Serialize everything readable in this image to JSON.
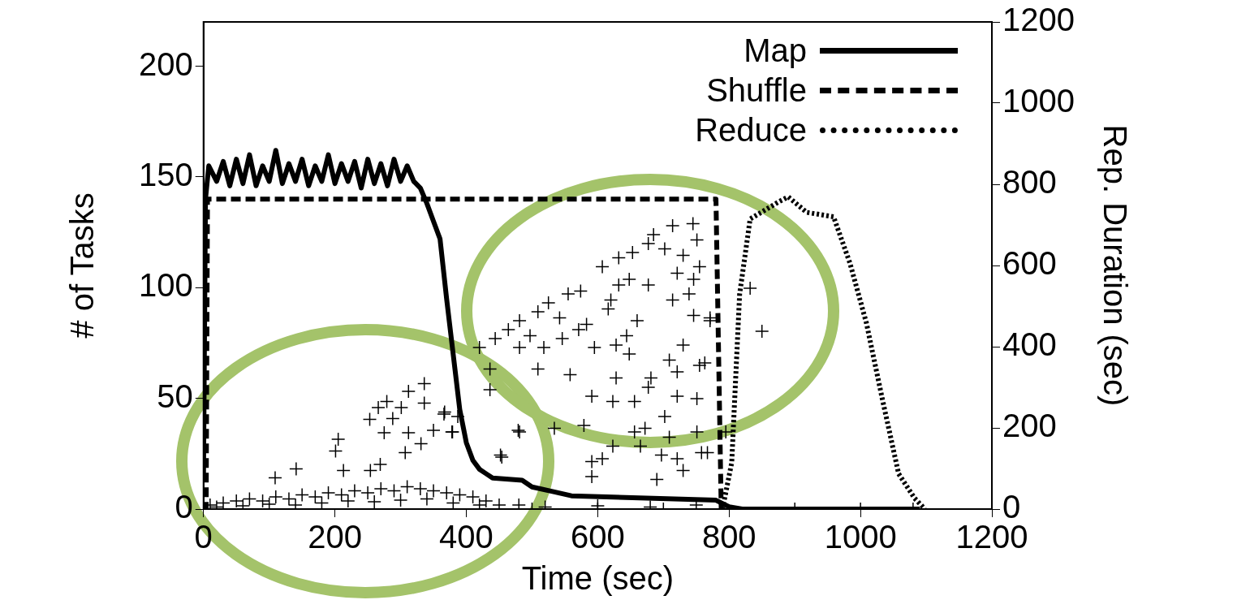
{
  "chart_data": {
    "type": "line",
    "xlabel": "Time (sec)",
    "ylabel": "# of Tasks",
    "y2label": "Rep. Duration (sec)",
    "xlim": [
      0,
      1200
    ],
    "xticks": [
      0,
      200,
      400,
      600,
      800,
      1000,
      1200
    ],
    "ylim": [
      0,
      220
    ],
    "yticks": [
      0,
      50,
      100,
      150,
      200
    ],
    "y2lim": [
      0,
      1200
    ],
    "y2ticks": [
      0,
      200,
      400,
      600,
      800,
      1000,
      1200
    ],
    "legend": "top right",
    "grid": false,
    "series": [
      {
        "type": "scatter",
        "axis": "y2",
        "color": "#000000",
        "marker": "cross",
        "x": [
          10,
          30,
          50,
          70,
          90,
          110,
          130,
          150,
          170,
          190,
          210,
          230,
          250,
          270,
          290,
          310,
          330,
          350,
          370,
          390,
          410,
          430,
          450,
          20,
          60,
          100,
          140,
          180,
          220,
          260,
          300,
          340,
          380,
          420,
          141,
          109,
          205,
          201,
          253,
          279,
          266,
          301,
          312,
          336,
          336,
          288,
          312,
          275,
          331,
          350,
          379,
          367,
          307,
          269,
          213,
          254,
          454,
          479,
          420,
          444,
          481,
          509,
          525,
          555,
          574,
          607,
          632,
          653,
          685,
          714,
          745,
          730,
          746,
          677,
          714,
          746,
          660,
          620,
          583,
          546,
          518,
          481,
          509,
          558,
          591,
          628,
          648,
          681,
          709,
          730,
          721,
          755,
          771,
          751,
          721,
          702,
          672,
          656,
          623,
          709,
          697,
          751,
          758,
          721,
          690,
          730,
          665,
          623,
          591,
          607,
          591,
          579,
          534,
          481,
          452,
          436,
          378,
          366,
          387,
          436,
          464,
          497,
          542,
          571,
          595,
          628,
          644,
          616,
          632,
          648,
          677,
          702,
          721,
          739,
          755,
          751,
          677,
          656,
          850,
          832,
          795,
          771,
          763,
          767,
          480,
          520,
          600,
          680,
          750,
          500,
          600,
          700,
          900,
          1000,
          1080
        ],
        "values": [
          10,
          15,
          20,
          25,
          20,
          30,
          25,
          35,
          30,
          40,
          35,
          45,
          40,
          50,
          45,
          55,
          50,
          45,
          40,
          35,
          30,
          20,
          10,
          5,
          8,
          12,
          10,
          15,
          20,
          18,
          22,
          25,
          15,
          10,
          99,
          77,
          172,
          143,
          221,
          265,
          250,
          250,
          290,
          309,
          261,
          223,
          188,
          188,
          161,
          194,
          190,
          239,
          139,
          110,
          95,
          95,
          128,
          194,
          398,
          420,
          464,
          486,
          508,
          530,
          537,
          597,
          619,
          632,
          676,
          698,
          703,
          625,
          566,
          552,
          515,
          477,
          464,
          515,
          455,
          420,
          398,
          398,
          345,
          331,
          278,
          323,
          382,
          323,
          367,
          404,
          338,
          354,
          471,
          272,
          278,
          228,
          199,
          190,
          265,
          177,
          133,
          190,
          139,
          124,
          73,
          95,
          155,
          155,
          117,
          124,
          80,
          206,
          199,
          190,
          133,
          294,
          190,
          234,
          228,
          345,
          442,
          427,
          471,
          442,
          398,
          404,
          427,
          493,
          552,
          566,
          654,
          641,
          581,
          530,
          597,
          663,
          300,
          265,
          438,
          544,
          190,
          464,
          360,
          139,
          10,
          5,
          8,
          5,
          10,
          0,
          0,
          0,
          0,
          0,
          0
        ]
      },
      {
        "name": "Map",
        "color": "#000000",
        "line_style": "solid",
        "marker": "none",
        "x": [
          0,
          3,
          8,
          20,
          30,
          40,
          50,
          60,
          70,
          80,
          90,
          100,
          110,
          120,
          130,
          140,
          150,
          160,
          170,
          180,
          190,
          200,
          210,
          220,
          230,
          240,
          250,
          260,
          270,
          280,
          290,
          300,
          310,
          320,
          330,
          340,
          350,
          360,
          370,
          380,
          390,
          400,
          410,
          420,
          430,
          440,
          485,
          500,
          530,
          560,
          780,
          800,
          820,
          1090
        ],
        "values": [
          15,
          140,
          155,
          148,
          157,
          146,
          158,
          147,
          160,
          146,
          155,
          148,
          162,
          147,
          156,
          148,
          158,
          146,
          155,
          148,
          160,
          147,
          156,
          148,
          157,
          145,
          158,
          147,
          156,
          146,
          158,
          148,
          155,
          148,
          145,
          138,
          130,
          122,
          95,
          70,
          45,
          30,
          22,
          18,
          16,
          14,
          13,
          10,
          8,
          6,
          4,
          1,
          0,
          0
        ]
      },
      {
        "name": "Shuffle",
        "color": "#000000",
        "line_style": "dashed",
        "marker": "none",
        "x": [
          0,
          4,
          6,
          780,
          788
        ],
        "values": [
          0,
          0,
          140,
          140,
          0
        ]
      },
      {
        "name": "Reduce",
        "color": "#000000",
        "line_style": "dotted",
        "marker": "none",
        "x": [
          790,
          804,
          816,
          832,
          877,
          890,
          918,
          959,
          984,
          1009,
          1033,
          1058,
          1082,
          1098
        ],
        "values": [
          0,
          21,
          97,
          131,
          139,
          141,
          134,
          132,
          111,
          84,
          50,
          16,
          5,
          0
        ]
      }
    ]
  }
}
